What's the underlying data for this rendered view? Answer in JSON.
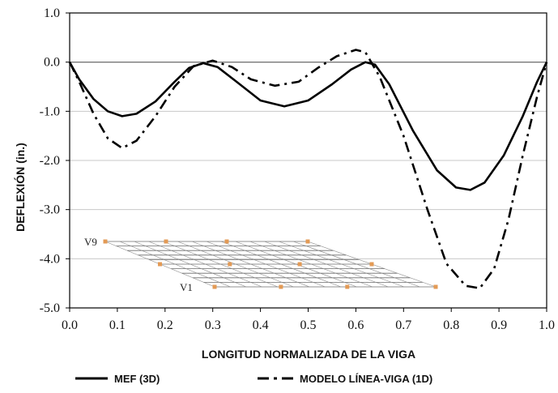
{
  "chart_data": {
    "type": "line",
    "title": "",
    "xlabel": "LONGITUD NORMALIZADA DE LA VIGA",
    "ylabel": "DEFLEXIÓN (in.)",
    "xlim": [
      0.0,
      1.0
    ],
    "ylim": [
      -5.0,
      1.0
    ],
    "x_ticks": [
      "0.0",
      "0.1",
      "0.2",
      "0.3",
      "0.4",
      "0.5",
      "0.6",
      "0.7",
      "0.8",
      "0.9",
      "1.0"
    ],
    "y_ticks": [
      "1.0",
      "0.0",
      "-1.0",
      "-2.0",
      "-3.0",
      "-4.0",
      "-5.0"
    ],
    "grid": "horizontal",
    "legend_position": "bottom",
    "series": [
      {
        "name": "MEF (3D)",
        "style": "solid",
        "color": "#000000",
        "points": [
          [
            0.0,
            0.0
          ],
          [
            0.02,
            -0.35
          ],
          [
            0.05,
            -0.75
          ],
          [
            0.08,
            -1.0
          ],
          [
            0.11,
            -1.1
          ],
          [
            0.14,
            -1.05
          ],
          [
            0.18,
            -0.8
          ],
          [
            0.22,
            -0.4
          ],
          [
            0.25,
            -0.12
          ],
          [
            0.28,
            -0.02
          ],
          [
            0.31,
            -0.1
          ],
          [
            0.35,
            -0.4
          ],
          [
            0.4,
            -0.78
          ],
          [
            0.45,
            -0.9
          ],
          [
            0.5,
            -0.78
          ],
          [
            0.55,
            -0.45
          ],
          [
            0.59,
            -0.15
          ],
          [
            0.62,
            0.0
          ],
          [
            0.64,
            -0.05
          ],
          [
            0.67,
            -0.45
          ],
          [
            0.72,
            -1.4
          ],
          [
            0.77,
            -2.2
          ],
          [
            0.81,
            -2.55
          ],
          [
            0.84,
            -2.6
          ],
          [
            0.87,
            -2.45
          ],
          [
            0.91,
            -1.9
          ],
          [
            0.95,
            -1.1
          ],
          [
            0.98,
            -0.4
          ],
          [
            1.0,
            0.0
          ]
        ]
      },
      {
        "name": "MODELO LÍNEA-VIGA (1D)",
        "style": "dash-dot",
        "color": "#000000",
        "points": [
          [
            0.0,
            0.0
          ],
          [
            0.02,
            -0.4
          ],
          [
            0.05,
            -1.05
          ],
          [
            0.08,
            -1.55
          ],
          [
            0.11,
            -1.75
          ],
          [
            0.14,
            -1.6
          ],
          [
            0.18,
            -1.1
          ],
          [
            0.22,
            -0.5
          ],
          [
            0.26,
            -0.08
          ],
          [
            0.3,
            0.03
          ],
          [
            0.34,
            -0.1
          ],
          [
            0.38,
            -0.35
          ],
          [
            0.43,
            -0.48
          ],
          [
            0.48,
            -0.4
          ],
          [
            0.52,
            -0.12
          ],
          [
            0.56,
            0.12
          ],
          [
            0.6,
            0.25
          ],
          [
            0.62,
            0.2
          ],
          [
            0.65,
            -0.3
          ],
          [
            0.7,
            -1.5
          ],
          [
            0.75,
            -3.0
          ],
          [
            0.79,
            -4.1
          ],
          [
            0.83,
            -4.55
          ],
          [
            0.86,
            -4.6
          ],
          [
            0.89,
            -4.2
          ],
          [
            0.92,
            -3.2
          ],
          [
            0.95,
            -1.9
          ],
          [
            0.98,
            -0.7
          ],
          [
            1.0,
            0.0
          ]
        ]
      }
    ],
    "inset": {
      "labels": [
        "V9",
        "V1"
      ]
    }
  }
}
